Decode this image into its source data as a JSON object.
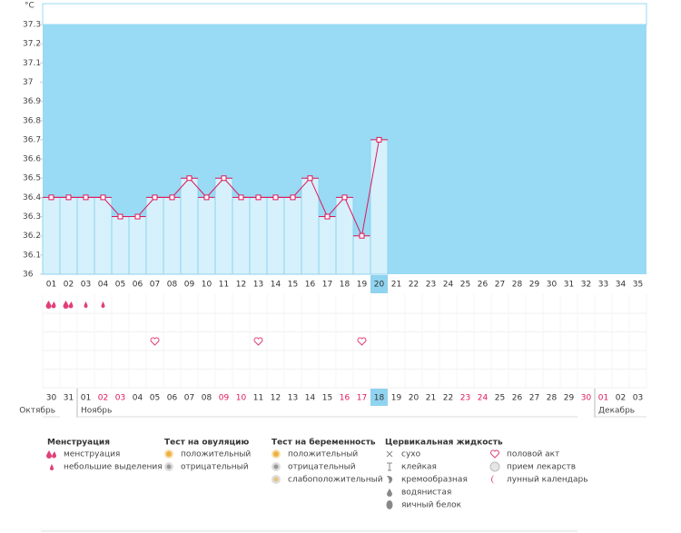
{
  "chart_data": {
    "type": "line",
    "y_unit": "°C",
    "x": [
      "01",
      "02",
      "03",
      "04",
      "05",
      "06",
      "07",
      "08",
      "09",
      "10",
      "11",
      "12",
      "13",
      "14",
      "15",
      "16",
      "17",
      "18",
      "19",
      "20",
      "21",
      "22",
      "23",
      "24",
      "25",
      "26",
      "27",
      "28",
      "29",
      "30",
      "31",
      "32",
      "33",
      "34",
      "35"
    ],
    "values": [
      36.4,
      36.4,
      36.4,
      36.4,
      36.3,
      36.3,
      36.4,
      36.4,
      36.5,
      36.4,
      36.5,
      36.4,
      36.4,
      36.4,
      36.4,
      36.5,
      36.3,
      36.4,
      36.2,
      36.7,
      null,
      null,
      null,
      null,
      null,
      null,
      null,
      null,
      null,
      null,
      null,
      null,
      null,
      null,
      null
    ],
    "ylim": [
      36,
      37.3
    ],
    "yticks": [
      36,
      36.1,
      36.2,
      36.3,
      36.4,
      36.5,
      36.6,
      36.7,
      36.8,
      36.9,
      37,
      37.1,
      37.2,
      37.3
    ],
    "highlight": "20",
    "line_color": "#e0175a",
    "bar_color": "#d6f1fc",
    "background_color": "#99daf4"
  },
  "icon_rows": [
    {
      "icon": "menstruation",
      "days": [
        "01",
        "02"
      ]
    },
    {
      "icon": "spotting",
      "days": [
        "03",
        "04"
      ]
    },
    {
      "icon": "intercourse",
      "days": [
        "07",
        "13",
        "19"
      ]
    }
  ],
  "calendar": {
    "highlight": "18",
    "weekend_color": "#e0175a",
    "months": [
      {
        "name": "Октябрь",
        "dates": [
          "30",
          "31"
        ],
        "weekends": []
      },
      {
        "name": "Ноябрь",
        "dates": [
          "01",
          "02",
          "03",
          "04",
          "05",
          "06",
          "07",
          "08",
          "09",
          "10",
          "11",
          "12",
          "13",
          "14",
          "15",
          "16",
          "17",
          "18",
          "19",
          "20",
          "21",
          "22",
          "23",
          "24",
          "25",
          "26",
          "27",
          "28",
          "29",
          "30"
        ],
        "weekends": [
          "02",
          "03",
          "09",
          "10",
          "16",
          "17",
          "23",
          "24",
          "30"
        ]
      },
      {
        "name": "Декабрь",
        "dates": [
          "01",
          "02",
          "03"
        ],
        "weekends": [
          "01"
        ]
      }
    ]
  },
  "legend": [
    {
      "title": "Менструация",
      "items": [
        {
          "icon": "menstruation",
          "label": "менструация"
        },
        {
          "icon": "spotting",
          "label": "небольшие выделения"
        }
      ]
    },
    {
      "title": "Тест на овуляцию",
      "items": [
        {
          "icon": "positive",
          "label": "положительный"
        },
        {
          "icon": "negative",
          "label": "отрицательный"
        }
      ]
    },
    {
      "title": "Тест на беременность",
      "items": [
        {
          "icon": "positive",
          "label": "положительный"
        },
        {
          "icon": "negative",
          "label": "отрицательный"
        },
        {
          "icon": "weak",
          "label": "слабоположительный"
        }
      ]
    },
    {
      "title": "Цервикальная жидкость",
      "items": [
        {
          "icon": "dry",
          "label": "сухо"
        },
        {
          "icon": "sticky",
          "label": "клейкая"
        },
        {
          "icon": "creamy",
          "label": "кремообразная"
        },
        {
          "icon": "watery",
          "label": "водянистая"
        },
        {
          "icon": "eggwhite",
          "label": "яичный белок"
        }
      ]
    },
    {
      "items": [
        {
          "icon": "intercourse",
          "label": "половой акт"
        },
        {
          "icon": "pill",
          "label": "прием лекарств"
        },
        {
          "icon": "moon",
          "label": "лунный календарь"
        }
      ]
    }
  ]
}
